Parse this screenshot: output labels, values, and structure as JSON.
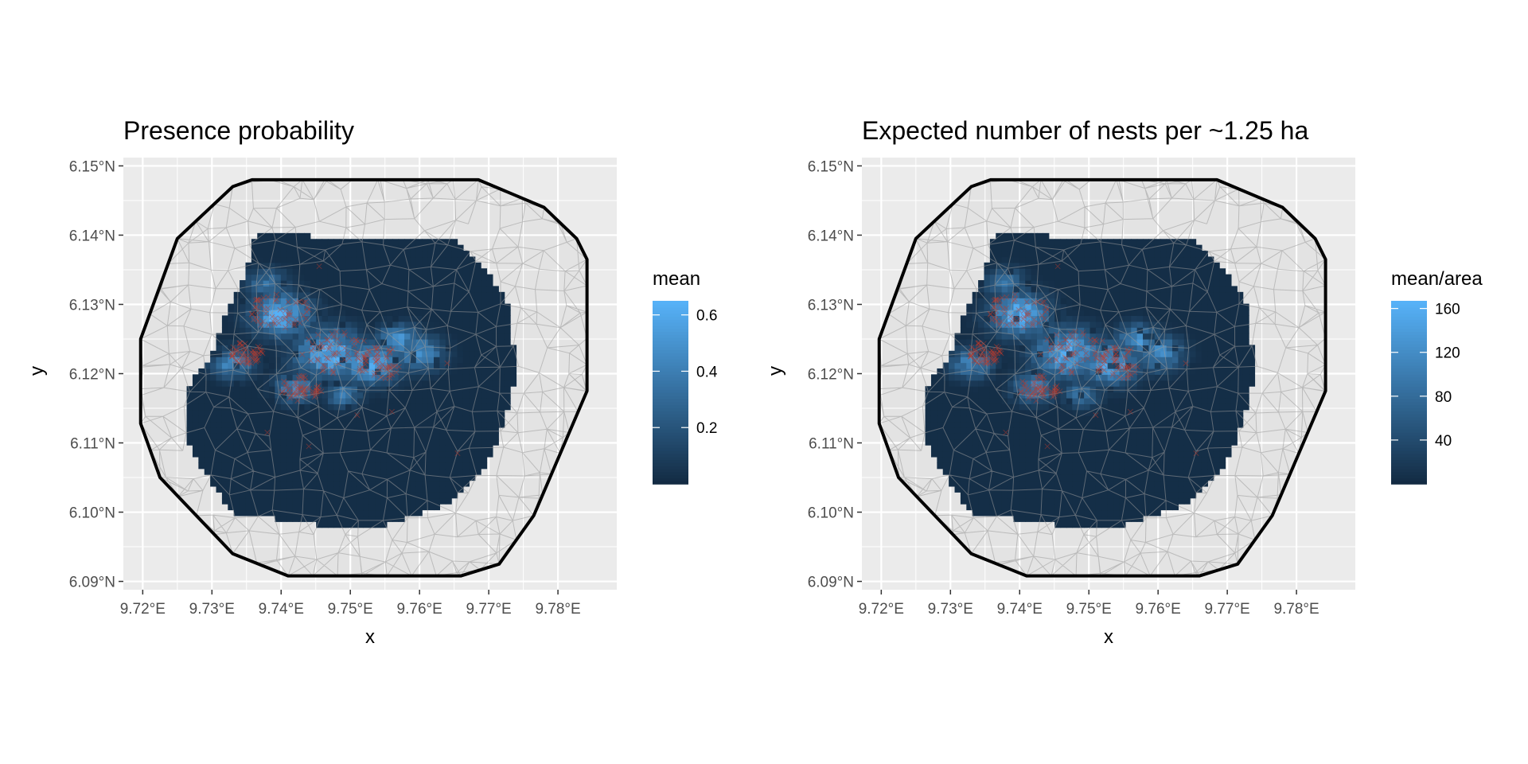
{
  "figure": {
    "background": "#ffffff"
  },
  "chart_data": [
    {
      "type": "heatmap",
      "title": "Presence probability",
      "xlabel": "x",
      "ylabel": "y",
      "xlim": [
        9.7172,
        9.7885
      ],
      "ylim": [
        6.0888,
        6.1512
      ],
      "x_ticks": [
        {
          "value": 9.72,
          "label": "9.72°E"
        },
        {
          "value": 9.73,
          "label": "9.73°E"
        },
        {
          "value": 9.74,
          "label": "9.74°E"
        },
        {
          "value": 9.75,
          "label": "9.75°E"
        },
        {
          "value": 9.76,
          "label": "9.76°E"
        },
        {
          "value": 9.77,
          "label": "9.77°E"
        },
        {
          "value": 9.78,
          "label": "9.78°E"
        }
      ],
      "y_ticks": [
        {
          "value": 6.09,
          "label": "6.09°N"
        },
        {
          "value": 6.1,
          "label": "6.10°N"
        },
        {
          "value": 6.11,
          "label": "6.11°N"
        },
        {
          "value": 6.12,
          "label": "6.12°N"
        },
        {
          "value": 6.13,
          "label": "6.13°N"
        },
        {
          "value": 6.14,
          "label": "6.14°N"
        },
        {
          "value": 6.15,
          "label": "6.15°N"
        }
      ],
      "legend": {
        "title": "mean",
        "range": [
          0.0,
          0.65
        ],
        "ticks": [
          {
            "value": 0.2,
            "label": "0.2"
          },
          {
            "value": 0.4,
            "label": "0.4"
          },
          {
            "value": 0.6,
            "label": "0.6"
          }
        ],
        "low_color": "#132B43",
        "high_color": "#56B1F7",
        "position": "right"
      },
      "mesh_boundary": [
        [
          9.7197,
          6.125
        ],
        [
          9.725,
          6.1395
        ],
        [
          9.733,
          6.147
        ],
        [
          9.7358,
          6.148
        ],
        [
          9.7685,
          6.148
        ],
        [
          9.778,
          6.144
        ],
        [
          9.7827,
          6.1395
        ],
        [
          9.7842,
          6.1365
        ],
        [
          9.7842,
          6.1175
        ],
        [
          9.7765,
          6.0995
        ],
        [
          9.7715,
          6.0925
        ],
        [
          9.766,
          6.0908
        ],
        [
          9.741,
          6.0908
        ],
        [
          9.733,
          6.094
        ],
        [
          9.7225,
          6.105
        ],
        [
          9.7197,
          6.1128
        ]
      ],
      "grid": true,
      "panel_background": "#ebebeb"
    },
    {
      "type": "heatmap",
      "title": "Expected number of nests per ~1.25 ha",
      "xlabel": "x",
      "ylabel": "y",
      "xlim": [
        9.7172,
        9.7885
      ],
      "ylim": [
        6.0888,
        6.1512
      ],
      "x_ticks": [
        {
          "value": 9.72,
          "label": "9.72°E"
        },
        {
          "value": 9.73,
          "label": "9.73°E"
        },
        {
          "value": 9.74,
          "label": "9.74°E"
        },
        {
          "value": 9.75,
          "label": "9.75°E"
        },
        {
          "value": 9.76,
          "label": "9.76°E"
        },
        {
          "value": 9.77,
          "label": "9.77°E"
        },
        {
          "value": 9.78,
          "label": "9.78°E"
        }
      ],
      "y_ticks": [
        {
          "value": 6.09,
          "label": "6.09°N"
        },
        {
          "value": 6.1,
          "label": "6.10°N"
        },
        {
          "value": 6.11,
          "label": "6.11°N"
        },
        {
          "value": 6.12,
          "label": "6.12°N"
        },
        {
          "value": 6.13,
          "label": "6.13°N"
        },
        {
          "value": 6.14,
          "label": "6.14°N"
        },
        {
          "value": 6.15,
          "label": "6.15°N"
        }
      ],
      "legend": {
        "title": "mean/area",
        "range": [
          0,
          167
        ],
        "ticks": [
          {
            "value": 40,
            "label": "40"
          },
          {
            "value": 80,
            "label": "80"
          },
          {
            "value": 120,
            "label": "120"
          },
          {
            "value": 160,
            "label": "160"
          }
        ],
        "low_color": "#132B43",
        "high_color": "#56B1F7",
        "position": "right"
      },
      "mesh_boundary": [
        [
          9.7197,
          6.125
        ],
        [
          9.725,
          6.1395
        ],
        [
          9.733,
          6.147
        ],
        [
          9.7358,
          6.148
        ],
        [
          9.7685,
          6.148
        ],
        [
          9.778,
          6.144
        ],
        [
          9.7827,
          6.1395
        ],
        [
          9.7842,
          6.1365
        ],
        [
          9.7842,
          6.1175
        ],
        [
          9.7765,
          6.0995
        ],
        [
          9.7715,
          6.0925
        ],
        [
          9.766,
          6.0908
        ],
        [
          9.741,
          6.0908
        ],
        [
          9.733,
          6.094
        ],
        [
          9.7225,
          6.105
        ],
        [
          9.7197,
          6.1128
        ]
      ],
      "grid": true,
      "panel_background": "#ebebeb"
    }
  ]
}
